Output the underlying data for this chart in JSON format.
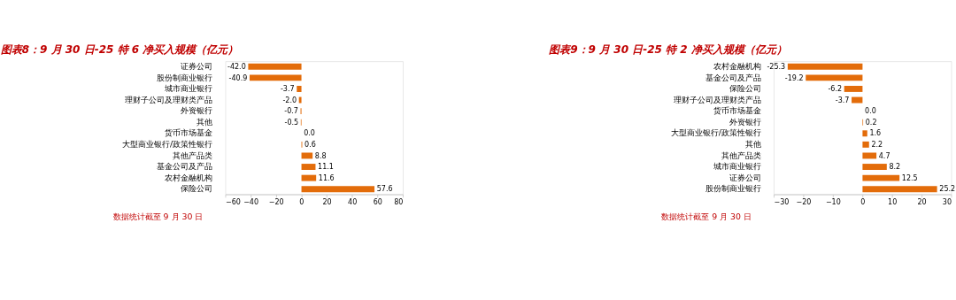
{
  "chart_data": [
    {
      "type": "bar",
      "orientation": "horizontal",
      "title": "图表8：9 月 30 日-25 特 6 净买入规模（亿元）",
      "categories": [
        "证券公司",
        "股份制商业银行",
        "城市商业银行",
        "理财子公司及理财类产品",
        "外资银行",
        "其他",
        "货币市场基金",
        "大型商业银行/政策性银行",
        "其他产品类",
        "基金公司及产品",
        "农村金融机构",
        "保险公司"
      ],
      "values": [
        -42.0,
        -40.9,
        -3.7,
        -2.0,
        -0.7,
        -0.5,
        0.0,
        0.6,
        8.8,
        11.1,
        11.6,
        57.6
      ],
      "value_labels": [
        "-42.0",
        "-40.9",
        "-3.7",
        "-2.0",
        "-0.7",
        "-0.5",
        "0.0",
        "0.6",
        "8.8",
        "11.1",
        "11.6",
        "57.6"
      ],
      "color": "#e36c0a",
      "xlim": [
        -60,
        80
      ],
      "xticks": [
        -60,
        -40,
        -20,
        0,
        20,
        40,
        60,
        80
      ],
      "grid": false,
      "annotations": [
        "数据统计截至 9 月 30 日"
      ]
    },
    {
      "type": "bar",
      "orientation": "horizontal",
      "title": "图表9：9 月 30 日-25 特 2 净买入规模（亿元）",
      "categories": [
        "农村金融机构",
        "基金公司及产品",
        "保险公司",
        "理财子公司及理财类产品",
        "货币市场基金",
        "外资银行",
        "大型商业银行/政策性银行",
        "其他",
        "其他产品类",
        "城市商业银行",
        "证券公司",
        "股份制商业银行"
      ],
      "values": [
        -25.3,
        -19.2,
        -6.2,
        -3.7,
        0.0,
        0.2,
        1.6,
        2.2,
        4.7,
        8.2,
        12.5,
        25.2
      ],
      "value_labels": [
        "-25.3",
        "-19.2",
        "-6.2",
        "-3.7",
        "0.0",
        "0.2",
        "1.6",
        "2.2",
        "4.7",
        "8.2",
        "12.5",
        "25.2"
      ],
      "color": "#e36c0a",
      "xlim": [
        -30,
        30
      ],
      "xticks": [
        -30,
        -20,
        -10,
        0,
        10,
        20,
        30
      ],
      "grid": false,
      "annotations": [
        "数据统计截至 9 月 30 日"
      ]
    }
  ]
}
